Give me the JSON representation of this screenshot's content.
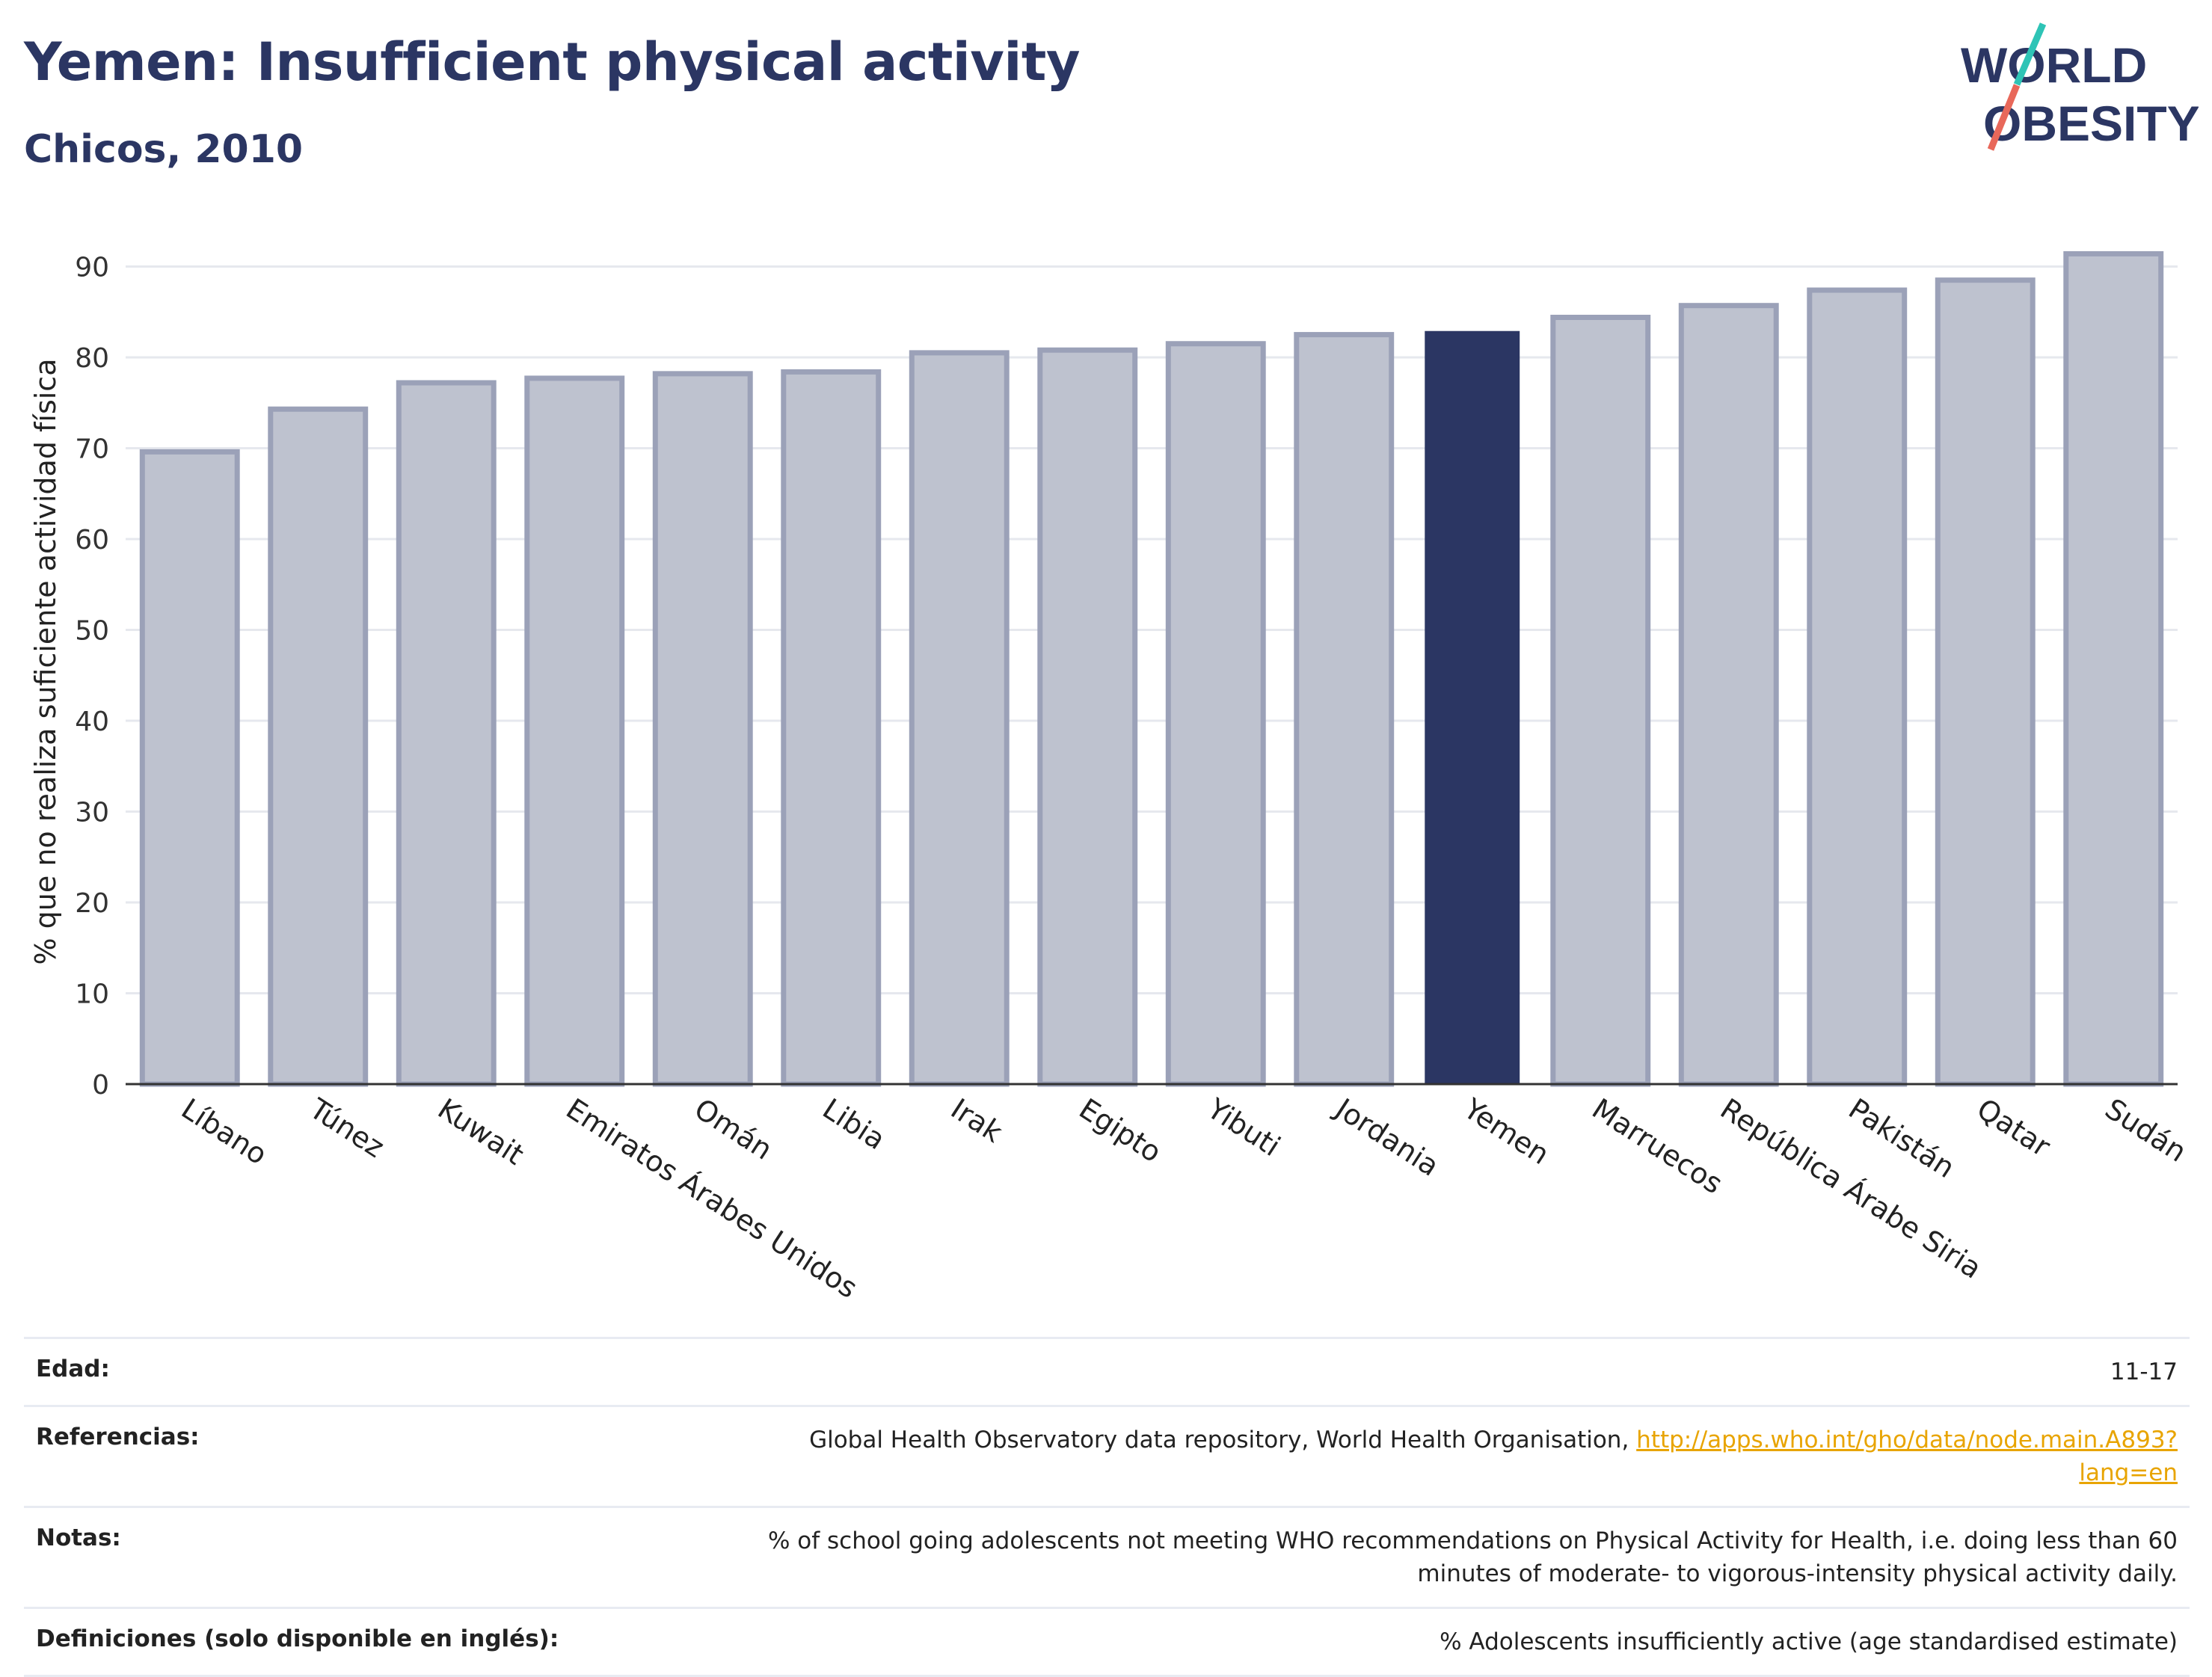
{
  "header": {
    "title": "Yemen: Insufficient physical activity",
    "subtitle": "Chicos, 2010"
  },
  "logo": {
    "line1": "WORLD",
    "line2": "OBESITY",
    "text_color": "#2b3663",
    "slash_colors": [
      "#2ec4b6",
      "#e8685a"
    ]
  },
  "chart_data": {
    "type": "bar",
    "title": "",
    "xlabel": "",
    "ylabel": "% que no realiza suficiente actividad física",
    "ylim": [
      0,
      93
    ],
    "yticks": [
      0,
      10,
      20,
      30,
      40,
      50,
      60,
      70,
      80,
      90
    ],
    "categories": [
      "Líbano",
      "Túnez",
      "Kuwait",
      "Emiratos Árabes Unidos",
      "Omán",
      "Libia",
      "Irak",
      "Egipto",
      "Yibuti",
      "Jordania",
      "Yemen",
      "Marruecos",
      "República Árabe Siria",
      "Pakistán",
      "Qatar",
      "Sudán"
    ],
    "values": [
      69.6,
      74.3,
      77.2,
      77.7,
      78.2,
      78.4,
      80.5,
      80.8,
      81.5,
      82.5,
      82.9,
      84.4,
      85.7,
      87.4,
      88.5,
      91.4
    ],
    "highlight": "Yemen",
    "colors": {
      "bar": "#bec2cf",
      "bar_border": "#9ba1b8",
      "highlight": "#2b3663",
      "grid": "#e6e8ee",
      "axis": "#333333"
    },
    "grid": true,
    "legend": "none"
  },
  "details": [
    {
      "label": "Edad:",
      "value": "11-17"
    },
    {
      "label": "Referencias:",
      "value": "Global Health Observatory data repository, World Health Organisation,",
      "link": "http://apps.who.int/gho/data/node.main.A893?lang=en"
    },
    {
      "label": "Notas:",
      "value": "% of school going adolescents not meeting WHO recommendations on Physical Activity for Health, i.e. doing less than 60 minutes of moderate- to vigorous-intensity physical activity daily."
    },
    {
      "label": "Definiciones (solo disponible en inglés):",
      "value": "% Adolescents insufficiently active (age standardised estimate)"
    }
  ]
}
